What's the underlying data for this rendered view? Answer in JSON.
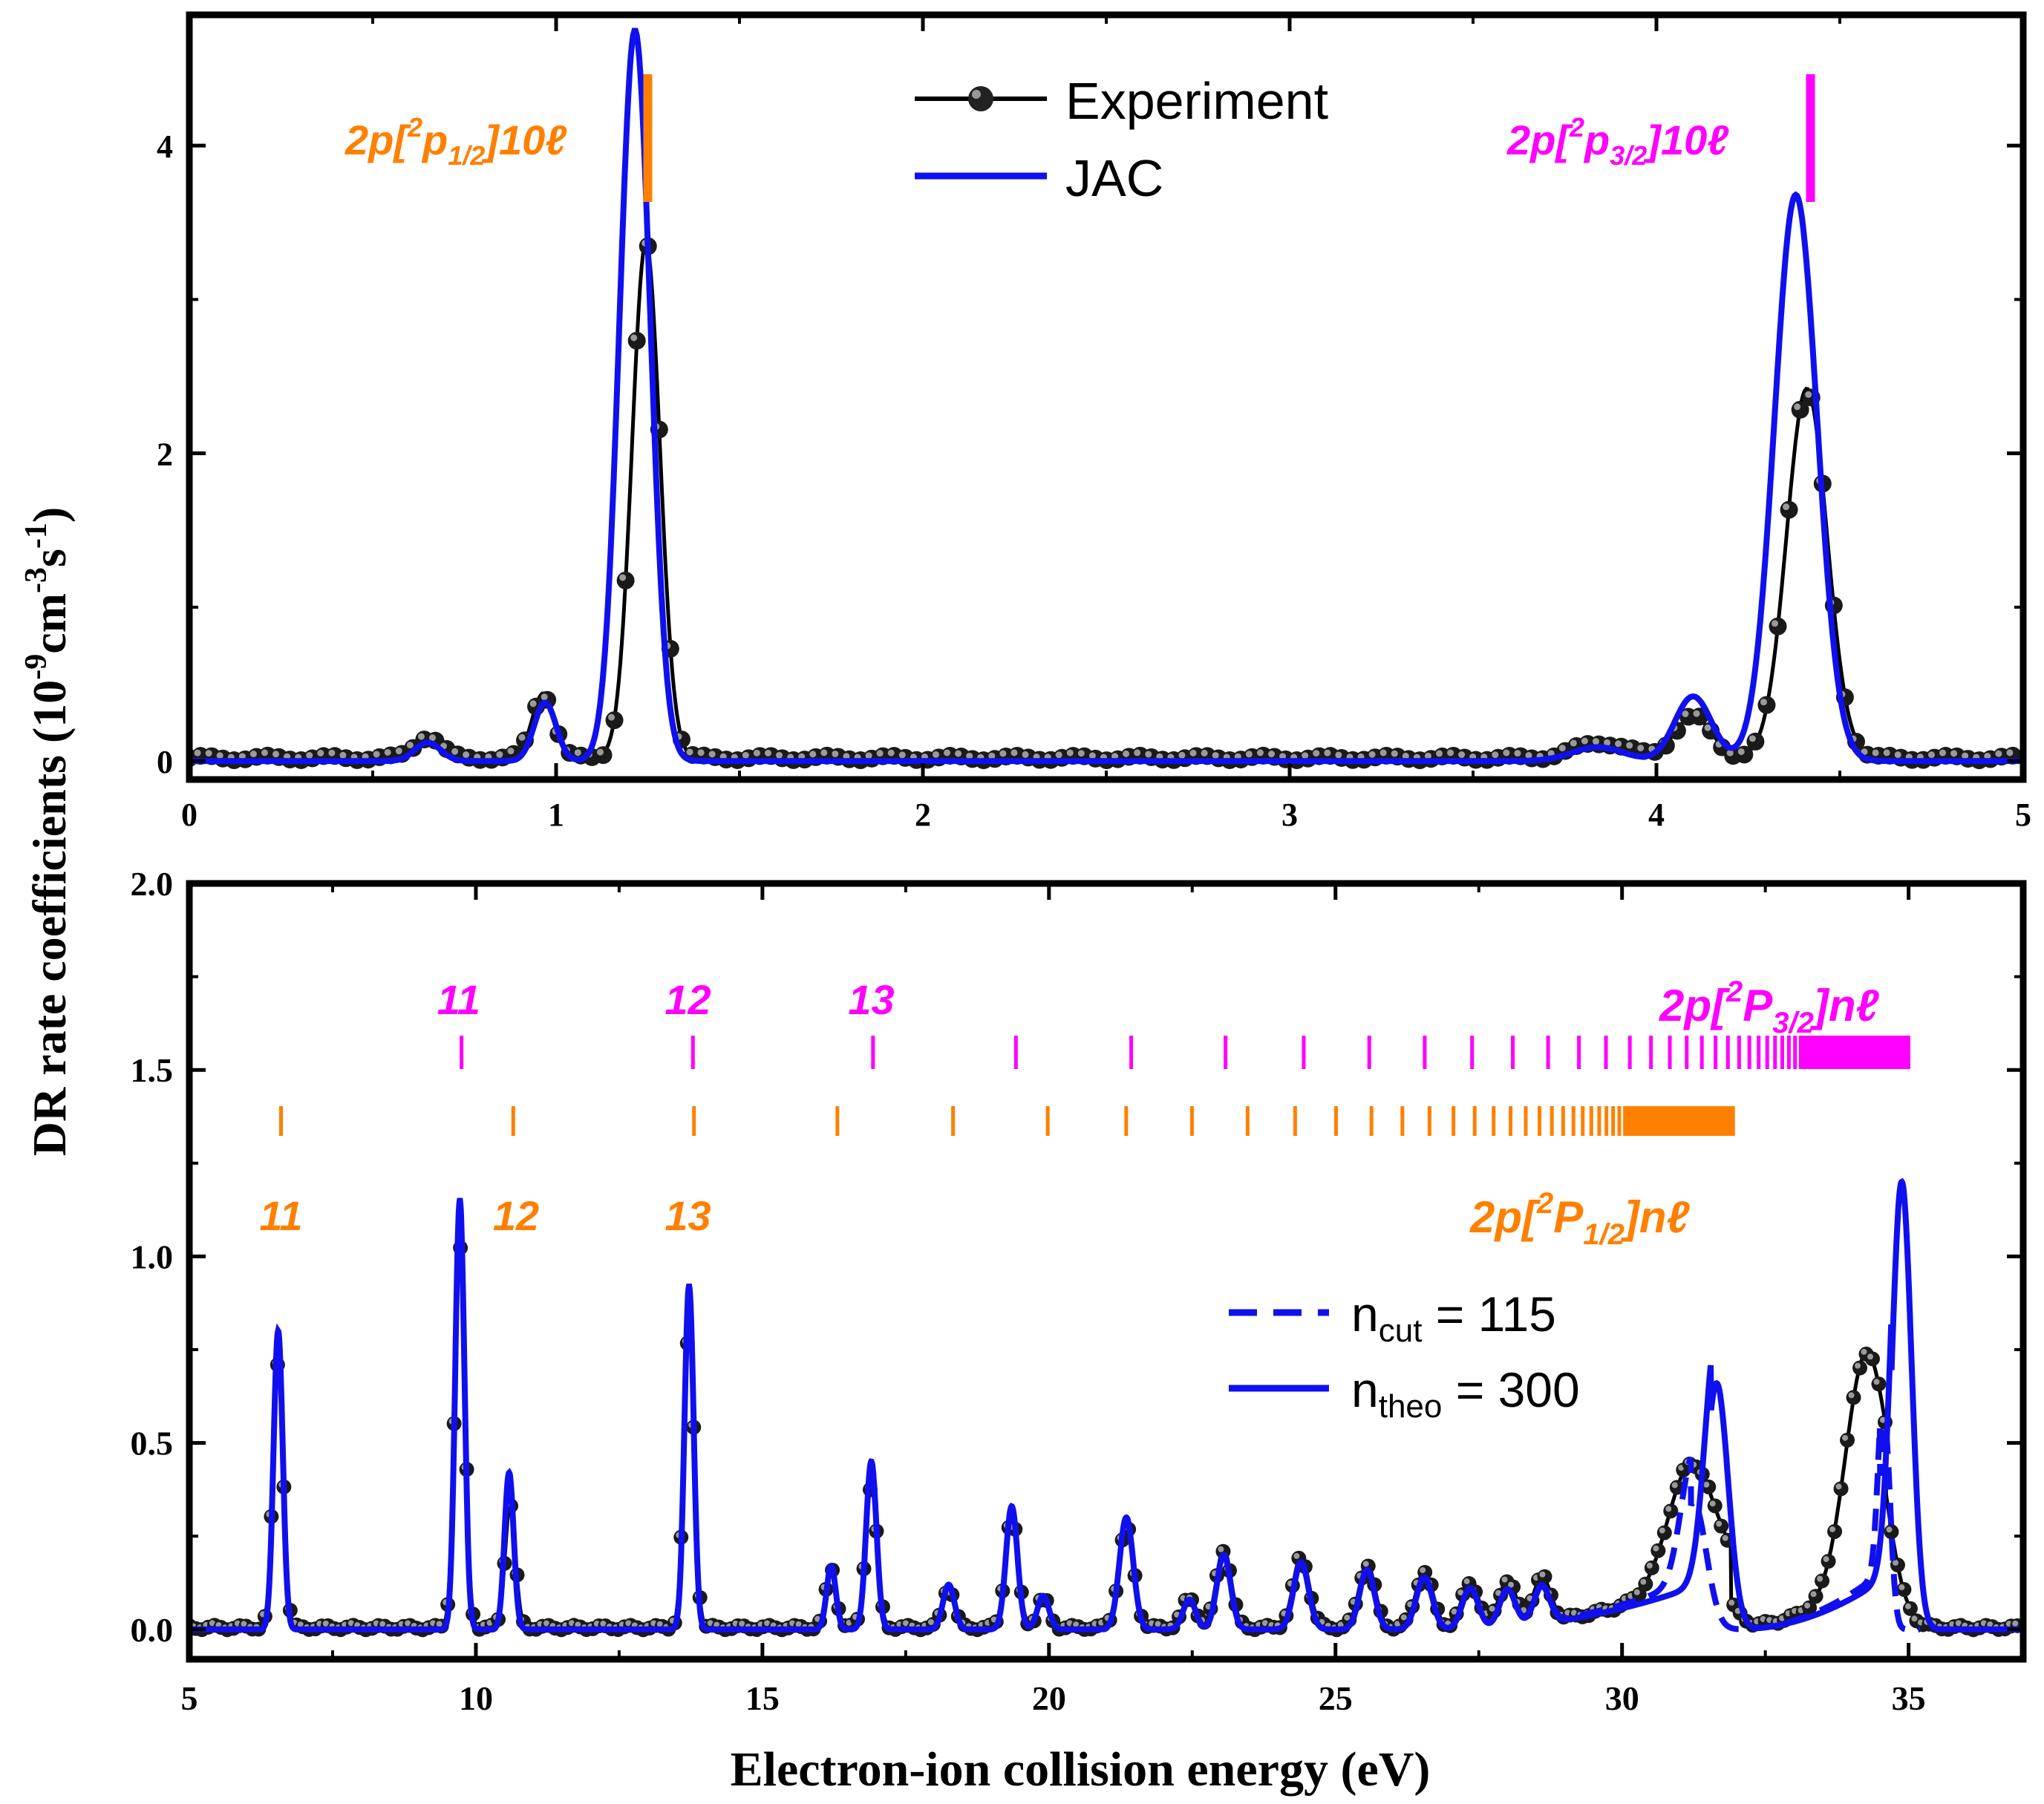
{
  "figure": {
    "ylabel": "DR rate coefficients (10",
    "ylabel_exp1": "-9",
    "ylabel_mid": "cm",
    "ylabel_exp2": "-3",
    "ylabel_mid2": "s",
    "ylabel_exp3": "-1",
    "ylabel_end": ")",
    "xlabel": "Electron-ion collision energy (eV)"
  },
  "colors": {
    "experiment": "#000000",
    "jac": "#1010ee",
    "orange": "#ff8000",
    "magenta": "#ff00ff"
  },
  "chart_data": [
    {
      "type": "line",
      "panel": "top",
      "xlim": [
        0,
        5
      ],
      "ylim": [
        -0.12,
        4.85
      ],
      "xticks": [
        0,
        1,
        2,
        3,
        4,
        5
      ],
      "yticks": [
        0,
        2,
        4
      ],
      "legend": [
        "Experiment",
        "JAC"
      ],
      "annotations": [
        {
          "base": "2p[",
          "sup": "2",
          "main": "p",
          "sub": "1/2",
          "tail": "]10ℓ",
          "color": "orange",
          "x": 1.25
        },
        {
          "base": "2p[",
          "sup": "2",
          "main": "p",
          "sub": "3/2",
          "tail": "]10ℓ",
          "color": "magenta",
          "x": 4.42
        }
      ],
      "series": [
        {
          "name": "Experiment",
          "peaks": [
            {
              "x": 0.65,
              "amp": 0.14,
              "w": 0.035
            },
            {
              "x": 0.965,
              "amp": 0.42,
              "w": 0.03
            },
            {
              "x": 1.245,
              "amp": 3.35,
              "w": 0.038
            },
            {
              "x": 3.85,
              "amp": 0.1,
              "w": 0.07
            },
            {
              "x": 4.1,
              "amp": 0.27,
              "w": 0.05
            },
            {
              "x": 4.41,
              "amp": 2.4,
              "w": 0.055
            }
          ],
          "baseline": 0.02
        },
        {
          "name": "JAC",
          "peaks": [
            {
              "x": 0.65,
              "amp": 0.12,
              "w": 0.035
            },
            {
              "x": 0.97,
              "amp": 0.38,
              "w": 0.03
            },
            {
              "x": 1.215,
              "amp": 4.75,
              "w": 0.042
            },
            {
              "x": 3.84,
              "amp": 0.09,
              "w": 0.07
            },
            {
              "x": 4.1,
              "amp": 0.42,
              "w": 0.05
            },
            {
              "x": 4.38,
              "amp": 3.68,
              "w": 0.058
            }
          ],
          "baseline": 0.0
        }
      ]
    },
    {
      "type": "line",
      "panel": "bottom",
      "xlim": [
        5,
        37
      ],
      "ylim": [
        -0.08,
        2.0
      ],
      "xticks": [
        5,
        10,
        15,
        20,
        25,
        30,
        35
      ],
      "yticks": [
        "0.0",
        "0.5",
        "1.0",
        "1.5",
        "2.0"
      ],
      "legend": [
        "n",
        "n"
      ],
      "legend_items": [
        {
          "main": "n",
          "sub": "cut",
          "tail": " = 115",
          "style": "dashed"
        },
        {
          "main": "n",
          "sub": "theo",
          "tail": " = 300",
          "style": "solid"
        }
      ],
      "series_labels": [
        {
          "base": "2p[",
          "sup": "2",
          "main": "P",
          "sub": "3/2",
          "tail": "]nℓ",
          "color": "magenta"
        },
        {
          "base": "2p[",
          "sup": "2",
          "main": "P",
          "sub": "1/2",
          "tail": "]nℓ",
          "color": "orange"
        }
      ],
      "magenta_n_labels": [
        {
          "n": "11",
          "x": 9.7
        },
        {
          "n": "12",
          "x": 13.7
        },
        {
          "n": "13",
          "x": 16.9
        }
      ],
      "orange_n_labels": [
        {
          "n": "11",
          "x": 6.6
        },
        {
          "n": "12",
          "x": 10.7
        },
        {
          "n": "13",
          "x": 13.7
        }
      ],
      "markers_3_2": {
        "limit": 35.03,
        "offset": 1.97,
        "n_start": 11,
        "n_end": 80
      },
      "markers_1_2": {
        "limit": 31.97,
        "offset": 1.97,
        "n_start": 10,
        "n_end": 80
      },
      "series": [
        {
          "name": "Experiment",
          "peaks": [
            {
              "x": 6.55,
              "amp": 0.71,
              "w": 0.09
            },
            {
              "x": 9.72,
              "amp": 1.02,
              "w": 0.09
            },
            {
              "x": 10.6,
              "amp": 0.33,
              "w": 0.09
            },
            {
              "x": 13.72,
              "amp": 0.8,
              "w": 0.09
            },
            {
              "x": 16.2,
              "amp": 0.16,
              "w": 0.09
            },
            {
              "x": 16.9,
              "amp": 0.38,
              "w": 0.1
            },
            {
              "x": 18.25,
              "amp": 0.11,
              "w": 0.1
            },
            {
              "x": 19.35,
              "amp": 0.3,
              "w": 0.11
            },
            {
              "x": 19.9,
              "amp": 0.08,
              "w": 0.1
            },
            {
              "x": 21.35,
              "amp": 0.27,
              "w": 0.13
            },
            {
              "x": 22.45,
              "amp": 0.08,
              "w": 0.12
            },
            {
              "x": 23.05,
              "amp": 0.21,
              "w": 0.13
            },
            {
              "x": 24.4,
              "amp": 0.19,
              "w": 0.14
            },
            {
              "x": 25.55,
              "amp": 0.17,
              "w": 0.14
            },
            {
              "x": 26.55,
              "amp": 0.15,
              "w": 0.15
            },
            {
              "x": 27.35,
              "amp": 0.12,
              "w": 0.15
            },
            {
              "x": 28.0,
              "amp": 0.12,
              "w": 0.15
            },
            {
              "x": 28.6,
              "amp": 0.12,
              "w": 0.15
            },
            {
              "x": 31.2,
              "amp": 0.33,
              "w": 0.4
            },
            {
              "x": 34.25,
              "amp": 0.6,
              "w": 0.35
            }
          ],
          "ramps": [
            {
              "start": 27.0,
              "end": 31.9,
              "amp": 0.15
            },
            {
              "start": 31.9,
              "end": 34.6,
              "amp": 0.18
            }
          ],
          "baseline": 0.005
        },
        {
          "name": "JAC",
          "peaks": [
            {
              "x": 6.55,
              "amp": 0.8,
              "w": 0.08
            },
            {
              "x": 9.72,
              "amp": 1.15,
              "w": 0.08
            },
            {
              "x": 10.58,
              "amp": 0.42,
              "w": 0.08
            },
            {
              "x": 13.72,
              "amp": 0.92,
              "w": 0.08
            },
            {
              "x": 16.2,
              "amp": 0.17,
              "w": 0.08
            },
            {
              "x": 16.9,
              "amp": 0.45,
              "w": 0.09
            },
            {
              "x": 18.25,
              "amp": 0.12,
              "w": 0.1
            },
            {
              "x": 19.35,
              "amp": 0.33,
              "w": 0.1
            },
            {
              "x": 19.9,
              "amp": 0.09,
              "w": 0.1
            },
            {
              "x": 21.35,
              "amp": 0.3,
              "w": 0.12
            },
            {
              "x": 22.45,
              "amp": 0.08,
              "w": 0.11
            },
            {
              "x": 23.05,
              "amp": 0.2,
              "w": 0.12
            },
            {
              "x": 24.4,
              "amp": 0.18,
              "w": 0.13
            },
            {
              "x": 25.55,
              "amp": 0.16,
              "w": 0.13
            },
            {
              "x": 26.55,
              "amp": 0.14,
              "w": 0.14
            },
            {
              "x": 27.35,
              "amp": 0.11,
              "w": 0.14
            },
            {
              "x": 28.0,
              "amp": 0.1,
              "w": 0.14
            },
            {
              "x": 28.6,
              "amp": 0.1,
              "w": 0.14
            },
            {
              "x": 31.65,
              "amp": 0.66,
              "w": 0.2
            },
            {
              "x": 34.88,
              "amp": 1.2,
              "w": 0.17
            }
          ],
          "ramps": [
            {
              "start": 27.0,
              "end": 31.55,
              "amp": 0.13
            },
            {
              "start": 32.0,
              "end": 34.7,
              "amp": 0.15
            }
          ],
          "baseline": 0.0
        },
        {
          "name": "n_cut = 115",
          "style": "dashed",
          "peaks": [
            {
              "x": 31.25,
              "amp": 0.34,
              "w": 0.22
            },
            {
              "x": 34.58,
              "amp": 0.55,
              "w": 0.1
            }
          ]
        }
      ]
    }
  ]
}
